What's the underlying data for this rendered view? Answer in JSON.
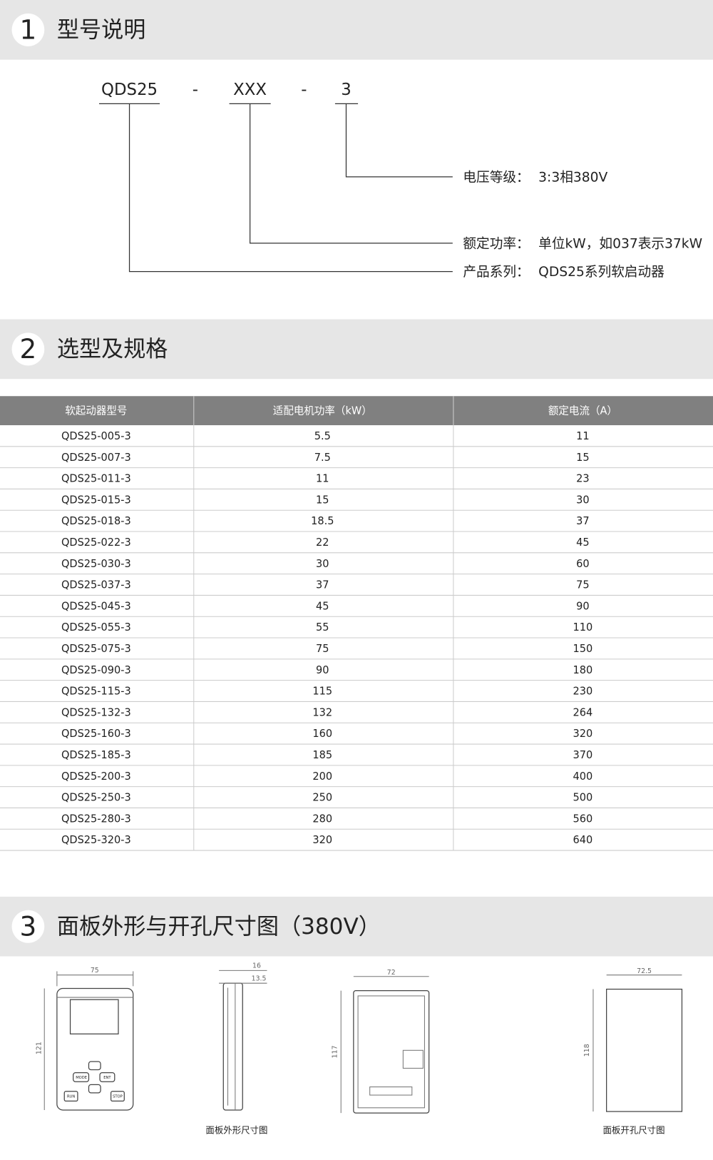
{
  "sections": [
    {
      "number": "1",
      "title": "型号说明"
    },
    {
      "number": "2",
      "title": "选型及规格"
    },
    {
      "number": "3",
      "title": "面板外形与开孔尺寸图（380V）"
    }
  ],
  "model_code": {
    "parts": [
      "QDS25",
      "-",
      "XXX",
      "-",
      "3"
    ],
    "notes": [
      {
        "label": "电压等级：",
        "text": "3:3相380V"
      },
      {
        "label": "额定功率：",
        "text": "单位kW，如037表示37kW"
      },
      {
        "label": "产品系列：",
        "text": "QDS25系列软启动器"
      }
    ]
  },
  "table": {
    "headers": [
      "软起动器型号",
      "适配电机功率（kW）",
      "额定电流（A）"
    ],
    "rows": [
      [
        "QDS25-005-3",
        "5.5",
        "11"
      ],
      [
        "QDS25-007-3",
        "7.5",
        "15"
      ],
      [
        "QDS25-011-3",
        "11",
        "23"
      ],
      [
        "QDS25-015-3",
        "15",
        "30"
      ],
      [
        "QDS25-018-3",
        "18.5",
        "37"
      ],
      [
        "QDS25-022-3",
        "22",
        "45"
      ],
      [
        "QDS25-030-3",
        "30",
        "60"
      ],
      [
        "QDS25-037-3",
        "37",
        "75"
      ],
      [
        "QDS25-045-3",
        "45",
        "90"
      ],
      [
        "QDS25-055-3",
        "55",
        "110"
      ],
      [
        "QDS25-075-3",
        "75",
        "150"
      ],
      [
        "QDS25-090-3",
        "90",
        "180"
      ],
      [
        "QDS25-115-3",
        "115",
        "230"
      ],
      [
        "QDS25-132-3",
        "132",
        "264"
      ],
      [
        "QDS25-160-3",
        "160",
        "320"
      ],
      [
        "QDS25-185-3",
        "185",
        "370"
      ],
      [
        "QDS25-200-3",
        "200",
        "400"
      ],
      [
        "QDS25-250-3",
        "250",
        "500"
      ],
      [
        "QDS25-280-3",
        "280",
        "560"
      ],
      [
        "QDS25-320-3",
        "320",
        "640"
      ]
    ]
  },
  "figures": [
    {
      "dimensions": [
        "75",
        "121"
      ],
      "buttons": [
        "MODE",
        "ENT",
        "RUN",
        "STOP"
      ]
    },
    {
      "dimensions": [
        "16",
        "13.5"
      ]
    },
    {
      "dimensions": [
        "72",
        "117"
      ]
    },
    {
      "dimensions": [
        "72.5",
        "118"
      ]
    }
  ],
  "captions": [
    "面板外形尺寸图",
    "面板开孔尺寸图"
  ]
}
